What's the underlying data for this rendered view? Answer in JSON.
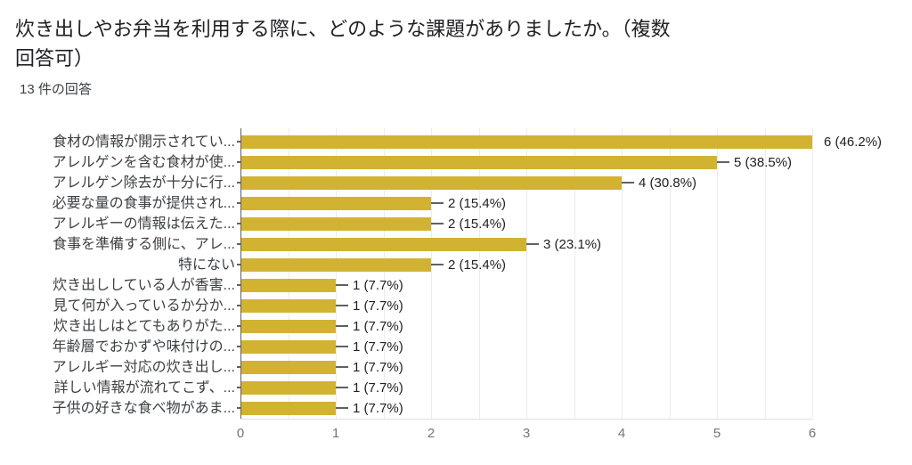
{
  "header": {
    "title": "炊き出しやお弁当を利用する際に、どのような課題がありましたか。（複数回答可）",
    "title_line1": "炊き出しやお弁当を利用する際に、どのような課題がありましたか。（複数",
    "title_line2": "回答可）",
    "response_count": "13 件の回答"
  },
  "colors": {
    "background": "#ffffff",
    "bar": "#d2b331",
    "title_text": "#202124",
    "subtitle_text": "#3c4043",
    "category_text": "#3c4043",
    "value_text": "#202124",
    "axis_tick_text": "#757575",
    "gridline": "#ececec",
    "axis_line": "#616161",
    "stem": "#616161",
    "baseline": "#e0e0e0"
  },
  "chart_data": {
    "type": "bar",
    "orientation": "horizontal",
    "title": "炊き出しやお弁当を利用する際に、どのような課題がありましたか。（複数回答可）",
    "subtitle": "13 件の回答",
    "total_responses": 13,
    "categories": [
      "食材の情報が開示されてい...",
      "アレルゲンを含む食材が使...",
      "アレルゲン除去が十分に行...",
      "必要な量の食事が提供され...",
      "アレルギーの情報は伝えた...",
      "食事を準備する側に、アレ...",
      "特にない",
      "炊き出ししている人が香害...",
      "見て何が入っているか分か...",
      "炊き出しはとてもありがた...",
      "年齢層でおかずや味付けの...",
      "アレルギー対応の炊き出し...",
      "詳しい情報が流れてこず、...",
      "子供の好きな食べ物があま..."
    ],
    "values": [
      6,
      5,
      4,
      2,
      2,
      3,
      2,
      1,
      1,
      1,
      1,
      1,
      1,
      1
    ],
    "value_labels": [
      "6 (46.2%)",
      "5 (38.5%)",
      "4 (30.8%)",
      "2 (15.4%)",
      "2 (15.4%)",
      "3 (23.1%)",
      "2 (15.4%)",
      "1 (7.7%)",
      "1 (7.7%)",
      "1 (7.7%)",
      "1 (7.7%)",
      "1 (7.7%)",
      "1 (7.7%)",
      "1 (7.7%)"
    ],
    "xlabel": "",
    "ylabel": "",
    "xlim": [
      0,
      6
    ],
    "x_ticks": [
      "0",
      "1",
      "2",
      "3",
      "4",
      "5",
      "6"
    ],
    "grid": true,
    "minor_grid_step": 0.5,
    "legend": "none"
  }
}
